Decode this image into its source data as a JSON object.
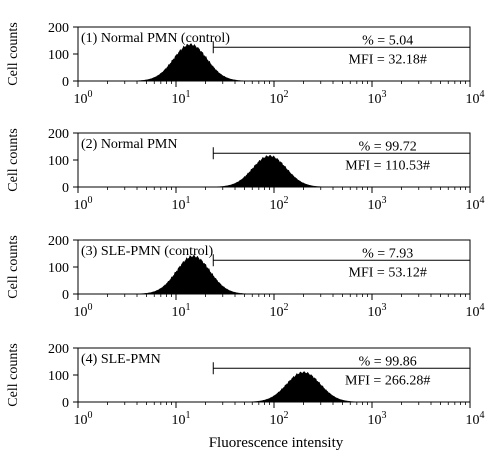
{
  "figure": {
    "xlabel": "Fluorescence intensity",
    "ylabel": "Cell counts"
  },
  "chart_data": [
    {
      "type": "area",
      "title": "(1) Normal PMN (control)",
      "xscale": "log",
      "xlim": [
        1,
        10000
      ],
      "ylim": [
        0,
        200
      ],
      "xticks": [
        1,
        10,
        100,
        1000,
        10000
      ],
      "yticks": [
        0,
        100,
        200
      ],
      "gate": {
        "x_start": 24,
        "x_end": 10000,
        "y": 125
      },
      "annotations": [
        "% = 5.04",
        "MFI = 32.18#"
      ],
      "histogram": {
        "peak_x": 14,
        "peak_y": 135,
        "spread_decades": 0.17
      }
    },
    {
      "type": "area",
      "title": "(2) Normal PMN",
      "xscale": "log",
      "xlim": [
        1,
        10000
      ],
      "ylim": [
        0,
        200
      ],
      "xticks": [
        1,
        10,
        100,
        1000,
        10000
      ],
      "yticks": [
        0,
        100,
        200
      ],
      "gate": {
        "x_start": 24,
        "x_end": 10000,
        "y": 125
      },
      "annotations": [
        "% = 99.72",
        "MFI = 110.53#"
      ],
      "histogram": {
        "peak_x": 90,
        "peak_y": 115,
        "spread_decades": 0.17
      }
    },
    {
      "type": "area",
      "title": "(3) SLE-PMN (control)",
      "xscale": "log",
      "xlim": [
        1,
        10000
      ],
      "ylim": [
        0,
        200
      ],
      "xticks": [
        1,
        10,
        100,
        1000,
        10000
      ],
      "yticks": [
        0,
        100,
        200
      ],
      "gate": {
        "x_start": 24,
        "x_end": 10000,
        "y": 125
      },
      "annotations": [
        "% = 7.93",
        "MFI = 53.12#"
      ],
      "histogram": {
        "peak_x": 15,
        "peak_y": 140,
        "spread_decades": 0.17
      }
    },
    {
      "type": "area",
      "title": "(4) SLE-PMN",
      "xscale": "log",
      "xlim": [
        1,
        10000
      ],
      "ylim": [
        0,
        200
      ],
      "xticks": [
        1,
        10,
        100,
        1000,
        10000
      ],
      "yticks": [
        0,
        100,
        200
      ],
      "gate": {
        "x_start": 24,
        "x_end": 10000,
        "y": 125
      },
      "annotations": [
        "% = 99.86",
        "MFI = 266.28#"
      ],
      "histogram": {
        "peak_x": 200,
        "peak_y": 110,
        "spread_decades": 0.17
      }
    }
  ]
}
